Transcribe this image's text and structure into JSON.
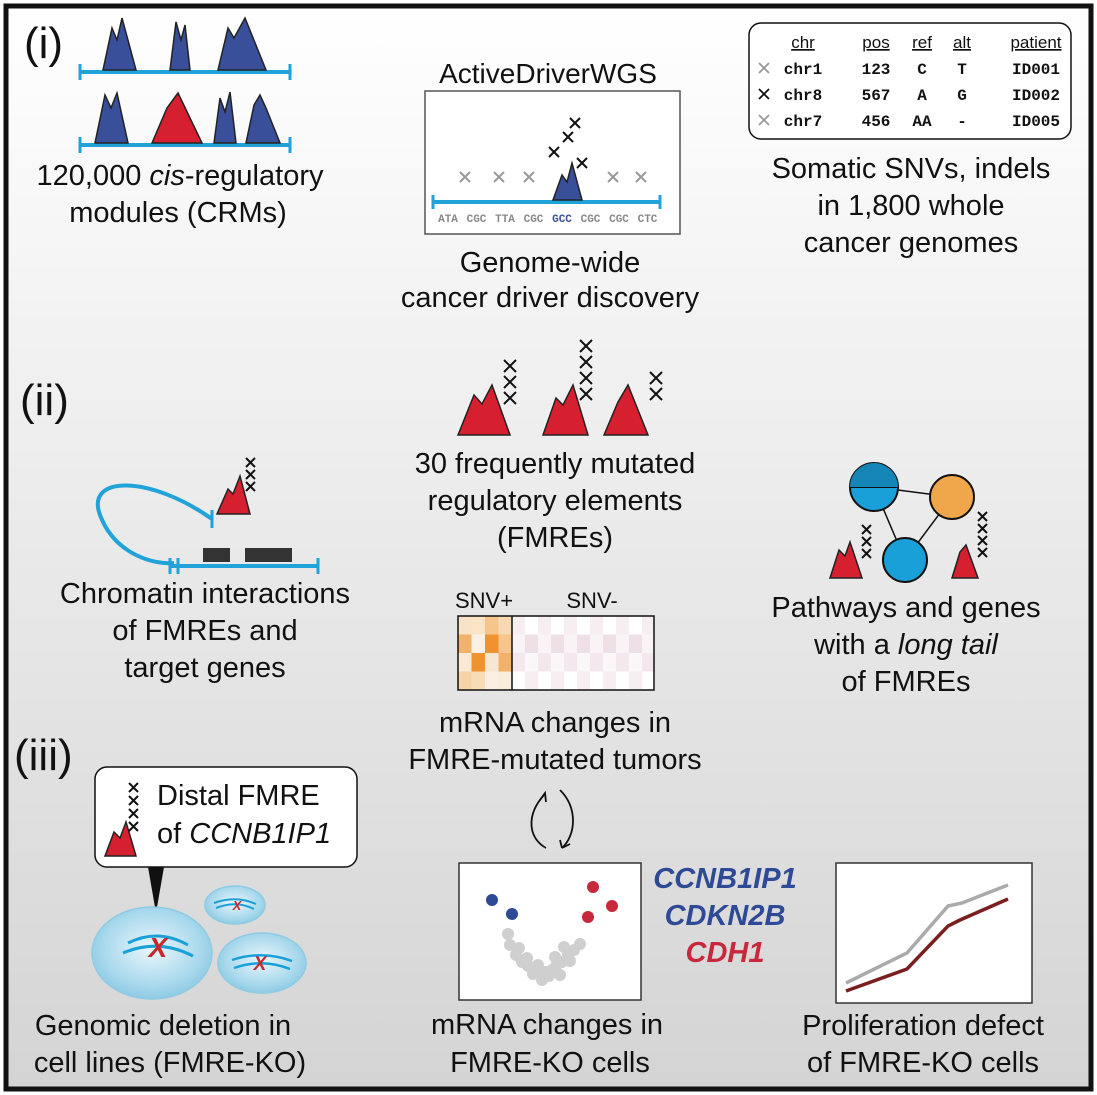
{
  "sections": {
    "s1": "(i)",
    "s2": "(ii)",
    "s3": "(iii)"
  },
  "crm": {
    "line1": "120,000 ",
    "italic": "cis",
    "line1b": "-regulatory",
    "line2": "modules (CRMs)"
  },
  "tool": {
    "title": "ActiveDriverWGS",
    "sequence": [
      "ATA",
      "CGC",
      "TTA",
      "CGC",
      "GCC",
      "CGC",
      "CGC",
      "CTC"
    ],
    "caption1": "Genome-wide",
    "caption2": "cancer driver discovery"
  },
  "snv_table": {
    "headers": [
      "chr",
      "pos",
      "ref",
      "alt",
      "patient"
    ],
    "rows": [
      [
        "chr1",
        "123",
        "C",
        "T",
        "ID001"
      ],
      [
        "chr8",
        "567",
        "A",
        "G",
        "ID002"
      ],
      [
        "chr7",
        "456",
        "AA",
        "-",
        "ID005"
      ]
    ],
    "caption1": "Somatic SNVs, indels",
    "caption2": "in 1,800 whole",
    "caption3": "cancer genomes"
  },
  "fmre": {
    "line1": "30 frequently mutated",
    "line2": "regulatory elements",
    "line3": "(FMREs)"
  },
  "chromatin": {
    "line1": "Chromatin interactions",
    "line2": "of FMREs and",
    "line3": "target genes"
  },
  "pathways": {
    "line1": "Pathways and genes",
    "line2a": "with a ",
    "line2i": "long tail",
    "line3": "of FMREs"
  },
  "heatmap": {
    "label_pos": "SNV+",
    "label_neg": "SNV-",
    "caption1": "mRNA changes in",
    "caption2": "FMRE-mutated tumors"
  },
  "deletion": {
    "callout1": "Distal FMRE",
    "callout2a": "of ",
    "callout2i": "CCNB1IP1",
    "mark": "X",
    "caption1": "Genomic deletion in",
    "caption2": "cell lines (FMRE-KO)"
  },
  "volcano": {
    "genes": [
      "CCNB1IP1",
      "CDKN2B",
      "CDH1"
    ],
    "caption1": "mRNA changes in",
    "caption2": "FMRE-KO cells"
  },
  "proliferation": {
    "caption1": "Proliferation defect",
    "caption2": "of FMRE-KO cells"
  },
  "colors": {
    "blue_peak": "#3a4f9a",
    "red_peak": "#d62030",
    "line_blue": "#1fa3d8",
    "node_orange": "#f0a64a",
    "node_blue": "#1aa0d8",
    "gene_blue": "#2e4a96",
    "gene_red": "#c8283c",
    "dark_red": "#7a1e1e"
  }
}
